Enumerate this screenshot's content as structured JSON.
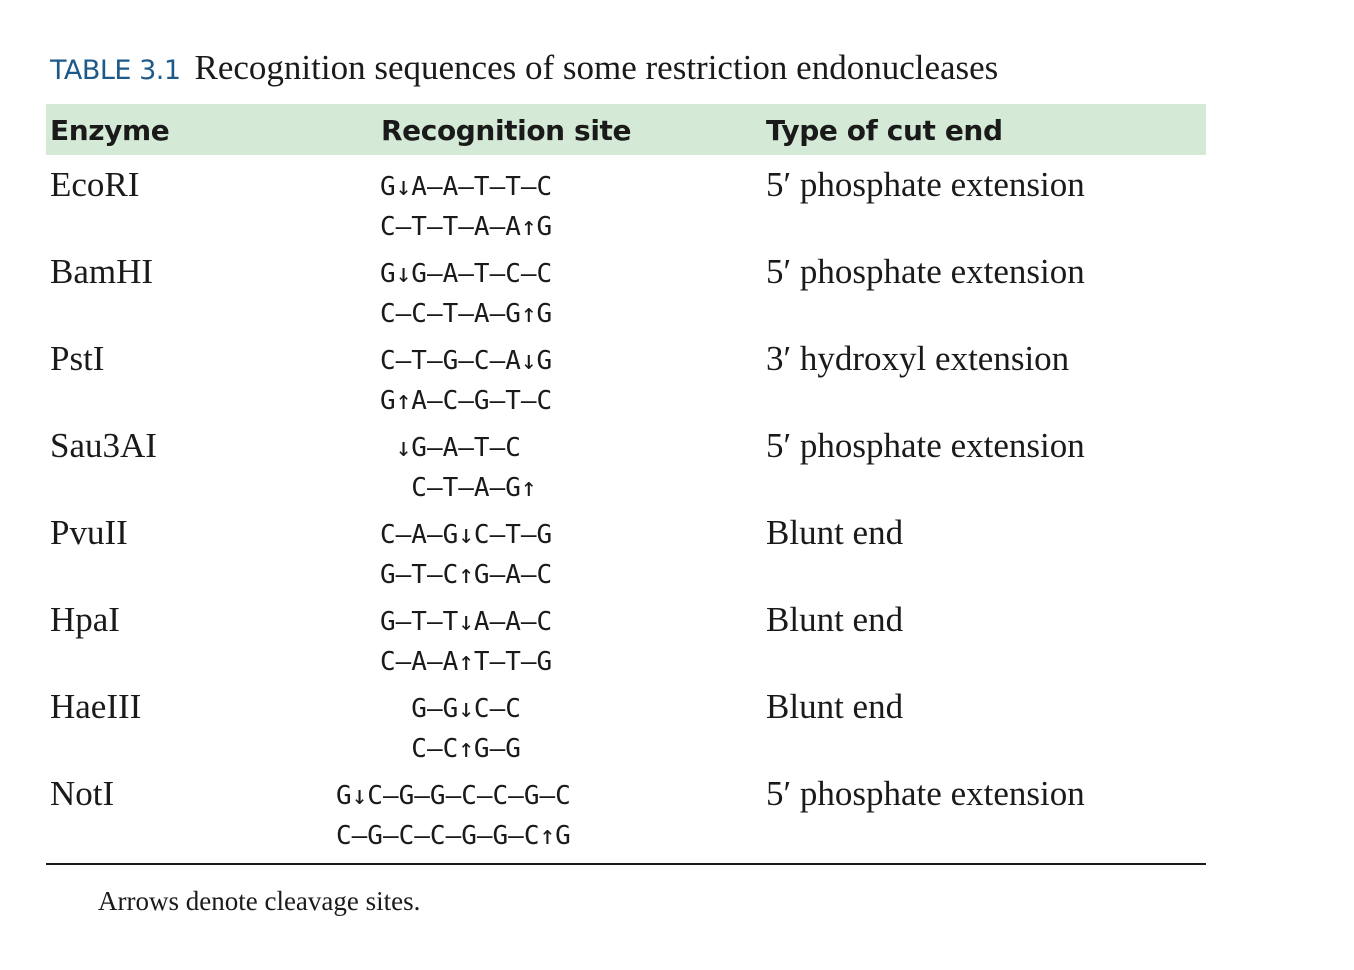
{
  "caption": {
    "label": "TABLE 3.1",
    "text": "Recognition sequences of some restriction endonucleases"
  },
  "columns": [
    "Enzyme",
    "Recognition site",
    "Type of cut end"
  ],
  "rows": [
    {
      "enzyme": "EcoRI",
      "top": "G↓A—A—T—T—C",
      "bottom": "C—T—T—A—A↑G",
      "cut": "5′ phosphate extension"
    },
    {
      "enzyme": "BamHI",
      "top": "G↓G—A—T—C—C",
      "bottom": "C—C—T—A—G↑G",
      "cut": "5′ phosphate extension"
    },
    {
      "enzyme": "PstI",
      "top": "C—T—G—C—A↓G",
      "bottom": "G↑A—C—G—T—C",
      "cut": "3′ hydroxyl extension"
    },
    {
      "enzyme": "Sau3AI",
      "top": " ↓G—A—T—C",
      "bottom": "  C—T—A—G↑",
      "cut": "5′ phosphate extension"
    },
    {
      "enzyme": "PvuII",
      "top": "C—A—G↓C—T—G",
      "bottom": "G—T—C↑G—A—C",
      "cut": "Blunt end"
    },
    {
      "enzyme": "HpaI",
      "top": "G—T—T↓A—A—C",
      "bottom": "C—A—A↑T—T—G",
      "cut": "Blunt end"
    },
    {
      "enzyme": "HaeIII",
      "top": "  G—G↓C—C",
      "bottom": "  C—C↑G—G",
      "cut": "Blunt end"
    },
    {
      "enzyme": "NotI",
      "top": "G↓C—G—G—C—C—G—C",
      "bottom": "C—G—C—C—G—G—C↑G",
      "cut": "5′ phosphate extension"
    }
  ],
  "footnote": "Arrows denote cleavage sites.",
  "colors": {
    "caption_label": "#1d5a8a",
    "header_band": "#d4ead6",
    "text": "#1a1a1a"
  }
}
